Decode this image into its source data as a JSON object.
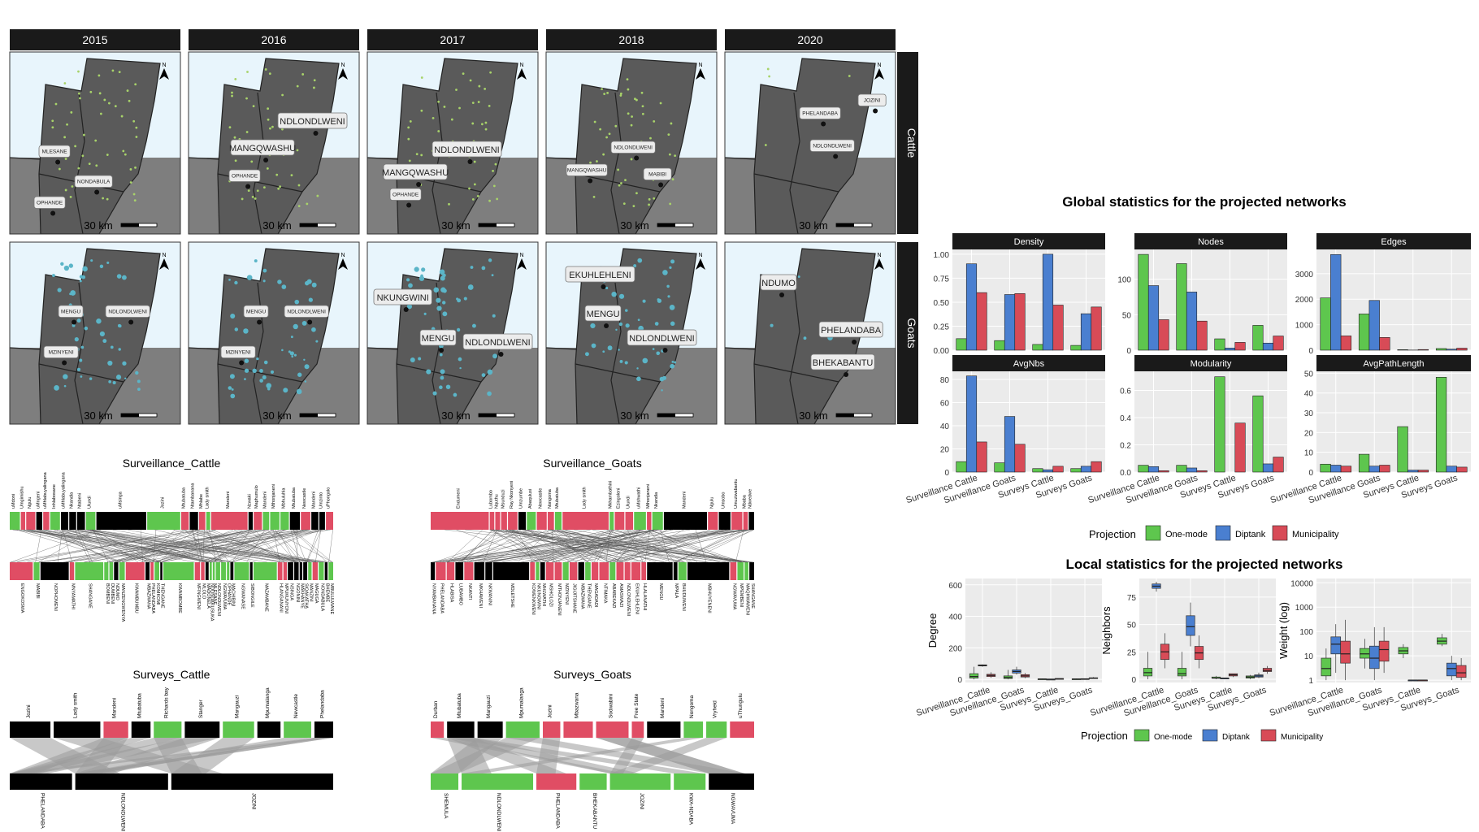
{
  "maps": {
    "years": [
      "2015",
      "2016",
      "2017",
      "2018",
      "2020"
    ],
    "species": [
      "Cattle",
      "Goats"
    ],
    "scale_label": "30 km",
    "north_label": "N",
    "colors": {
      "sea": "#e8f5fc",
      "land_main": "#5a5a5a",
      "land_south": "#7e7e7e",
      "strip": "#1a1a1a",
      "cattle_dot": "#a8d36a",
      "goat_dot": "#5bb5c8"
    },
    "place_labels": {
      "Cattle": {
        "2015": [
          "MLESANE",
          "NONDABULA",
          "OPHANDE"
        ],
        "2016": [
          "NDLONDLWENI",
          "MANGQWASHU",
          "OPHANDE"
        ],
        "2017": [
          "NDLONDLWENI",
          "MANGQWASHU",
          "OPHANDE"
        ],
        "2018": [
          "NDLONDLWENI",
          "MANGQWASHU",
          "MABIBI"
        ],
        "2020": [
          "PHELANDABA",
          "NDLONDLWENI",
          "JOZINI"
        ]
      },
      "Goats": {
        "2015": [
          "MENGU",
          "NDLONDLWENI",
          "MZINYENI"
        ],
        "2016": [
          "MENGU",
          "NDLONDLWENI",
          "MZINYENI"
        ],
        "2017": [
          "NKUNGWINI",
          "MENGU",
          "NDLONDLWENI"
        ],
        "2018": [
          "EKUHLEHLENI",
          "MENGU",
          "NDLONDLWENI"
        ],
        "2020": [
          "NDUMO",
          "PHELANDABA",
          "BHEKABANTU"
        ]
      }
    }
  },
  "bipartite": [
    {
      "title": "Surveillance_Cattle",
      "top_labels": [
        "uMdoni",
        "Umgimishu",
        "Ngulu",
        "uMngeni",
        "uMhlabuyalingana",
        "Inhlabosane",
        "uMhlabuyalingana",
        "Nkandla",
        "Ntabeni",
        "Ulundi",
        "uMsinga",
        "Jozini",
        "Mtubatuba",
        "Ntambanana",
        "Mhlabe",
        "Lady smith",
        "Mandeni",
        "Nzwaki",
        "Maphumulo",
        "Mandeni",
        "Mthonjaneni",
        "Mbhuluhla",
        "Mtubatuba",
        "Newcastle",
        "Mandeni",
        "Umzinto",
        "uPhongolo"
      ],
      "bottom_labels": [
        "ENGOKOSWA",
        "MABIBI",
        "NOPHOMENI",
        "MNYAMATHI",
        "SHANGANE",
        "BOMBENI",
        "DUMBENI",
        "NDUMO",
        "MANZENGWENYA",
        "KWAMBUMBU",
        "MBAZWANA",
        "PHELANDABA",
        "KOMKOMI",
        "THENGANE",
        "KWAMBOMBE",
        "MFINGWENI",
        "MLOLO",
        "MADONELA",
        "NDONDAKUSUKA",
        "MLESANE",
        "NDLONDLWENI",
        "NGWAVUMA",
        "OPHANDE",
        "MACHIBINI",
        "NGWANASE",
        "SIBONGILE",
        "MAZAMBANE",
        "HLANGANANI",
        "MPUKUNYONI",
        "NSINGA",
        "NGONINI",
        "MAKHANYE",
        "SIQAKATHA",
        "MANZINI",
        "MAGUGA",
        "NONDABULA",
        "BHEMBE",
        "MBULULWANE"
      ],
      "legend": {
        "surveillance_cattle_left": "Surveillance_Cattle"
      }
    },
    {
      "title": "Surveillance_Goats",
      "top_labels": [
        "Endumeni",
        "Lubombo",
        "Nquthu",
        "Msunduzi",
        "Ray Nkonyeni",
        "Umzumbe",
        "Abaqulusi",
        "Newcastle",
        "Nongoma",
        "Mtubatuba",
        "Lady smith",
        "Mkhambathini",
        "Ezingoleni",
        "Ulundi",
        "uMshwathi",
        "Mthonjaneni",
        "Nkandla",
        "Mandeni",
        "Ngulu",
        "Umsobo",
        "Umuziwabantu",
        "Mbaba",
        "Ndwedwe"
      ],
      "bottom_labels": [
        "NYAMBANANA",
        "PHELANDABA",
        "HLABISA",
        "LUBAMBO",
        "NKANTI",
        "MKHAWENI",
        "NKWANINI",
        "MDLETSHE",
        "KOWENKWENI",
        "NKUNGWINI",
        "MHLWATHI",
        "MSHOLOZI",
        "MTHONJANENI",
        "MZINYENI",
        "JIGIJITSHANE",
        "MBAZWANA",
        "THENGANE",
        "MAGADADI",
        "NTIMAKA",
        "ABABEKAZI",
        "AMASWAZI",
        "NDLONDLWENI",
        "EKUHLEHLENI",
        "HLALANATHI",
        "MENGU",
        "MPALA",
        "BHUDUWENI",
        "MBHUYENENI",
        "NGWAVUMA",
        "MPEMBENI",
        "MAQHWAWENI",
        "SHANGANE"
      ]
    },
    {
      "title": "Surveys_Cattle",
      "top_labels": [
        "Jozini",
        "Lady smith",
        "Mandeni",
        "Mtubatuba",
        "Richards bay",
        "Stanger",
        "Mangauzi",
        "Mpumalanga",
        "Newcastle",
        "Phelandaba"
      ],
      "bottom_labels": [
        "PHELANDABA",
        "NDLONDLWENI",
        "JOZINI"
      ]
    },
    {
      "title": "Surveys_Goats",
      "top_labels": [
        "Durban",
        "Mtubatuba",
        "Mangauzi",
        "Mpumalanga",
        "Jozini",
        "Mbazwana",
        "Sodwabini",
        "Free State",
        "Mandeni",
        "Nongoma",
        "Vryheid",
        "uThungulu"
      ],
      "bottom_labels": [
        "SHEMULA",
        "NDLONDLWENI",
        "PHELANDABA",
        "BHEKABANTU",
        "JOZINI",
        "KWA-NDABA",
        "NGWAVUMA"
      ]
    }
  ],
  "global_stats": {
    "title": "Global statistics for the projected networks",
    "legend_title": "Projection",
    "legend_items": [
      "One-mode",
      "Diptank",
      "Municipality"
    ],
    "colors": [
      "#5ec64e",
      "#4a7fd0",
      "#d84b57"
    ],
    "panel_bg": "#ebebeb"
  },
  "local_stats": {
    "title": "Local statistics for the projected networks",
    "legend_title": "Projection",
    "legend_items": [
      "One-mode",
      "Diptank",
      "Municipality"
    ]
  },
  "chart_data": [
    {
      "type": "bar",
      "title": "Density",
      "categories": [
        "Surveillance Cattle",
        "Surveillance Goats",
        "Surveys Cattle",
        "Surveys Goats"
      ],
      "series": [
        {
          "name": "One-mode",
          "values": [
            0.12,
            0.1,
            0.06,
            0.05
          ]
        },
        {
          "name": "Diptank",
          "values": [
            0.9,
            0.58,
            1.0,
            0.38
          ]
        },
        {
          "name": "Municipality",
          "values": [
            0.6,
            0.59,
            0.47,
            0.45
          ]
        }
      ],
      "ylim": [
        0,
        1.05
      ],
      "yticks": [
        "0.00",
        "0.25",
        "0.50",
        "0.75",
        "1.00"
      ],
      "ytick_values": [
        0,
        0.25,
        0.5,
        0.75,
        1.0
      ]
    },
    {
      "type": "bar",
      "title": "Nodes",
      "categories": [
        "Surveillance Cattle",
        "Surveillance Goats",
        "Surveys Cattle",
        "Surveys Goats"
      ],
      "series": [
        {
          "name": "One-mode",
          "values": [
            135,
            122,
            16,
            35
          ]
        },
        {
          "name": "Diptank",
          "values": [
            91,
            82,
            3,
            10
          ]
        },
        {
          "name": "Municipality",
          "values": [
            43,
            41,
            11,
            20
          ]
        }
      ],
      "ylim": [
        0,
        142
      ],
      "yticks": [
        "0",
        "50",
        "100"
      ],
      "ytick_values": [
        0,
        50,
        100
      ]
    },
    {
      "type": "bar",
      "title": "Edges",
      "categories": [
        "Surveillance Cattle",
        "Surveillance Goats",
        "Surveys Cattle",
        "Surveys Goats"
      ],
      "series": [
        {
          "name": "One-mode",
          "values": [
            2050,
            1420,
            20,
            65
          ]
        },
        {
          "name": "Diptank",
          "values": [
            3750,
            1950,
            5,
            40
          ]
        },
        {
          "name": "Municipality",
          "values": [
            560,
            500,
            25,
            80
          ]
        }
      ],
      "ylim": [
        0,
        3950
      ],
      "yticks": [
        "0",
        "1000",
        "2000",
        "3000"
      ],
      "ytick_values": [
        0,
        1000,
        2000,
        3000
      ]
    },
    {
      "type": "bar",
      "title": "AvgNbs",
      "categories": [
        "Surveillance Cattle",
        "Surveillance Goats",
        "Surveys Cattle",
        "Surveys Goats"
      ],
      "series": [
        {
          "name": "One-mode",
          "values": [
            9,
            8,
            3,
            3
          ]
        },
        {
          "name": "Diptank",
          "values": [
            83,
            48,
            2,
            5
          ]
        },
        {
          "name": "Municipality",
          "values": [
            26,
            24,
            5,
            9
          ]
        }
      ],
      "ylim": [
        0,
        87
      ],
      "yticks": [
        "0",
        "20",
        "40",
        "60",
        "80"
      ],
      "ytick_values": [
        0,
        20,
        40,
        60,
        80
      ]
    },
    {
      "type": "bar",
      "title": "Modularity",
      "categories": [
        "Surveillance Cattle",
        "Surveillance Goats",
        "Surveys Cattle",
        "Surveys Goats"
      ],
      "series": [
        {
          "name": "One-mode",
          "values": [
            0.05,
            0.05,
            0.7,
            0.56
          ]
        },
        {
          "name": "Diptank",
          "values": [
            0.04,
            0.03,
            0.0,
            0.06
          ]
        },
        {
          "name": "Municipality",
          "values": [
            0.01,
            0.01,
            0.36,
            0.11
          ]
        }
      ],
      "ylim": [
        0,
        0.74
      ],
      "yticks": [
        "0.0",
        "0.2",
        "0.4",
        "0.6"
      ],
      "ytick_values": [
        0,
        0.2,
        0.4,
        0.6
      ]
    },
    {
      "type": "bar",
      "title": "AvgPathLength",
      "categories": [
        "Surveillance Cattle",
        "Surveillance Goats",
        "Surveys Cattle",
        "Surveys Goats"
      ],
      "series": [
        {
          "name": "One-mode",
          "values": [
            4,
            9,
            23,
            48
          ]
        },
        {
          "name": "Diptank",
          "values": [
            3.5,
            3,
            1,
            3
          ]
        },
        {
          "name": "Municipality",
          "values": [
            3,
            3.5,
            1,
            2.5
          ]
        }
      ],
      "ylim": [
        0,
        51
      ],
      "yticks": [
        "0",
        "10",
        "20",
        "30",
        "40",
        "50"
      ],
      "ytick_values": [
        0,
        10,
        20,
        30,
        40,
        50
      ]
    },
    {
      "type": "boxplot",
      "title": "",
      "ylabel": "Degree",
      "categories": [
        "Surveillance_Cattle",
        "Surveillance_Goats",
        "Surveys_Cattle",
        "Surveys_Goats"
      ],
      "series": [
        {
          "name": "One-mode",
          "boxes": [
            [
              0,
              8,
              18,
              36,
              80
            ],
            [
              0,
              5,
              12,
              22,
              60
            ],
            [
              0,
              1,
              2,
              3,
              5
            ],
            [
              0,
              1,
              2,
              3,
              6
            ]
          ]
        },
        {
          "name": "Diptank",
          "boxes": [
            [
              80,
              85,
              88,
              92,
              95
            ],
            [
              30,
              40,
              50,
              60,
              80
            ],
            [
              1,
              1,
              1,
              1,
              1
            ],
            [
              0,
              2,
              3,
              4,
              6
            ]
          ]
        },
        {
          "name": "Municipality",
          "boxes": [
            [
              10,
              18,
              25,
              32,
              45
            ],
            [
              8,
              15,
              22,
              30,
              40
            ],
            [
              2,
              3,
              4,
              5,
              6
            ],
            [
              3,
              5,
              8,
              10,
              14
            ]
          ]
        }
      ],
      "ylim": [
        -20,
        640
      ],
      "yticks": [
        "0",
        "200",
        "400",
        "600"
      ],
      "ytick_values": [
        0,
        200,
        400,
        600
      ]
    },
    {
      "type": "boxplot",
      "title": "",
      "ylabel": "Neighbors",
      "categories": [
        "Surveillance_Cattle",
        "Surveillance_Goats",
        "Surveys_Cattle",
        "Surveys_Goats"
      ],
      "series": [
        {
          "name": "One-mode",
          "boxes": [
            [
              0,
              3,
              6,
              10,
              25
            ],
            [
              0,
              3,
              5,
              10,
              25
            ],
            [
              0,
              1,
              1,
              2,
              3
            ],
            [
              0,
              1,
              2,
              3,
              4
            ]
          ]
        },
        {
          "name": "Diptank",
          "boxes": [
            [
              80,
              83,
              85,
              87,
              89
            ],
            [
              30,
              40,
              48,
              58,
              70
            ],
            [
              1,
              1,
              1,
              1,
              1
            ],
            [
              1,
              2,
              3,
              4,
              6
            ]
          ]
        },
        {
          "name": "Municipality",
          "boxes": [
            [
              10,
              18,
              25,
              32,
              42
            ],
            [
              10,
              18,
              24,
              30,
              40
            ],
            [
              2,
              3,
              4,
              5,
              5
            ],
            [
              5,
              7,
              8,
              10,
              12
            ]
          ]
        }
      ],
      "ylim": [
        -3,
        92
      ],
      "yticks": [
        "0",
        "25",
        "50",
        "75"
      ],
      "ytick_values": [
        0,
        25,
        50,
        75
      ]
    },
    {
      "type": "boxplot",
      "title": "",
      "ylabel": "Weight (log)",
      "categories": [
        "Surveillance_Cattle",
        "Surveillance_Goats",
        "Surveys_Cattle",
        "Surveys_Goats"
      ],
      "series": [
        {
          "name": "One-mode",
          "boxes": [
            [
              1,
              1.5,
              3,
              8,
              20
            ],
            [
              3,
              8,
              12,
              20,
              50
            ],
            [
              8,
              12,
              16,
              22,
              30
            ],
            [
              25,
              30,
              40,
              55,
              80
            ]
          ]
        },
        {
          "name": "Diptank",
          "boxes": [
            [
              2,
              12,
              30,
              60,
              200
            ],
            [
              1,
              3,
              8,
              25,
              150
            ],
            [
              1,
              1,
              1,
              1,
              1
            ],
            [
              1,
              1.5,
              3,
              5,
              10
            ]
          ]
        },
        {
          "name": "Municipality",
          "boxes": [
            [
              1,
              5,
              12,
              40,
              300
            ],
            [
              2,
              6,
              18,
              40,
              150
            ],
            [
              1,
              1,
              1,
              1,
              1
            ],
            [
              1,
              1.3,
              2,
              4,
              8
            ]
          ]
        }
      ],
      "yscale": "log",
      "ylim": [
        0.8,
        15000
      ],
      "yticks": [
        "1",
        "10",
        "100",
        "1000",
        "10000"
      ],
      "ytick_values": [
        1,
        10,
        100,
        1000,
        10000
      ]
    }
  ]
}
